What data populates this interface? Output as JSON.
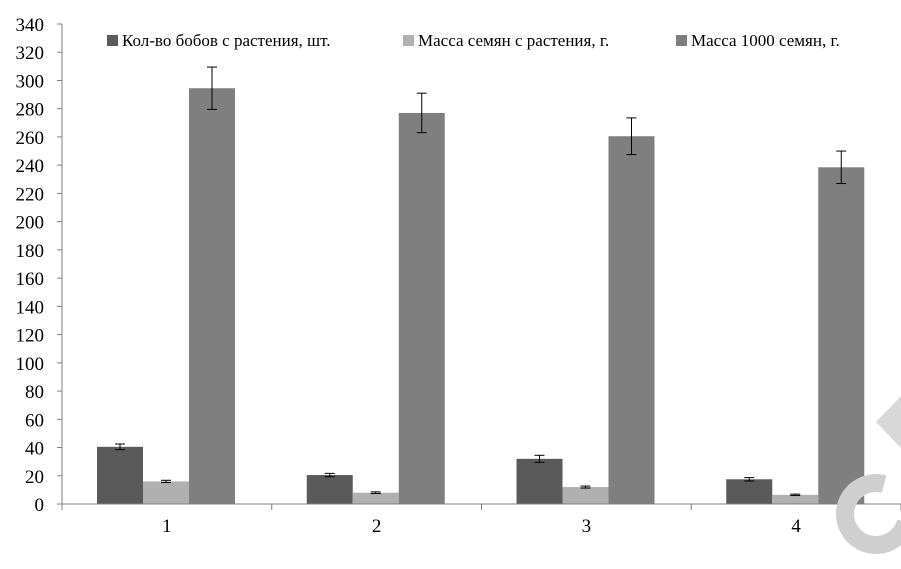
{
  "chart_data": {
    "type": "bar",
    "categories": [
      "1",
      "2",
      "3",
      "4"
    ],
    "series": [
      {
        "name": "Кол-во бобов с растения, шт.",
        "color": "#5a5a5a",
        "values": [
          40.5,
          20.5,
          32,
          17.5
        ],
        "errors": [
          2,
          1.2,
          2.5,
          1.2
        ]
      },
      {
        "name": "Масса семян с растения, г.",
        "color": "#b0b0b0",
        "values": [
          16,
          8,
          12,
          6.5
        ],
        "errors": [
          0.8,
          0.6,
          0.7,
          0.5
        ]
      },
      {
        "name": "Масса 1000 семян, г.",
        "color": "#7f7f7f",
        "values": [
          294.5,
          277,
          260.5,
          238.5
        ],
        "errors": [
          15,
          14,
          13,
          11.5
        ]
      }
    ],
    "yticks": [
      0,
      20,
      40,
      60,
      80,
      100,
      120,
      140,
      160,
      180,
      200,
      220,
      240,
      260,
      280,
      300,
      320,
      340
    ],
    "ylim": [
      0,
      340
    ],
    "grid": false,
    "legend_position": "top-right",
    "title": "",
    "xlabel": "",
    "ylabel": ""
  }
}
